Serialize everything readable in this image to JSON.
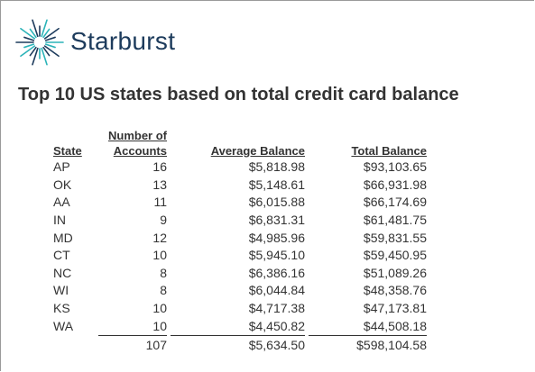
{
  "header": {
    "brand": "Starburst"
  },
  "title": "Top 10 US states based on total credit card balance",
  "table": {
    "columns": [
      "State",
      "Number of Accounts",
      "Average Balance",
      "Total Balance"
    ],
    "rows": [
      [
        "AP",
        "16",
        "$5,818.98",
        "$93,103.65"
      ],
      [
        "OK",
        "13",
        "$5,148.61",
        "$66,931.98"
      ],
      [
        "AA",
        "11",
        "$6,015.88",
        "$66,174.69"
      ],
      [
        "IN",
        "9",
        "$6,831.31",
        "$61,481.75"
      ],
      [
        "MD",
        "12",
        "$4,985.96",
        "$59,831.55"
      ],
      [
        "CT",
        "10",
        "$5,945.10",
        "$59,450.95"
      ],
      [
        "NC",
        "8",
        "$6,386.16",
        "$51,089.26"
      ],
      [
        "WI",
        "8",
        "$6,044.84",
        "$48,358.76"
      ],
      [
        "KS",
        "10",
        "$4,717.38",
        "$47,173.81"
      ],
      [
        "WA",
        "10",
        "$4,450.82",
        "$44,508.18"
      ]
    ],
    "totals": [
      "107",
      "$5,634.50",
      "$598,104.58"
    ]
  }
}
